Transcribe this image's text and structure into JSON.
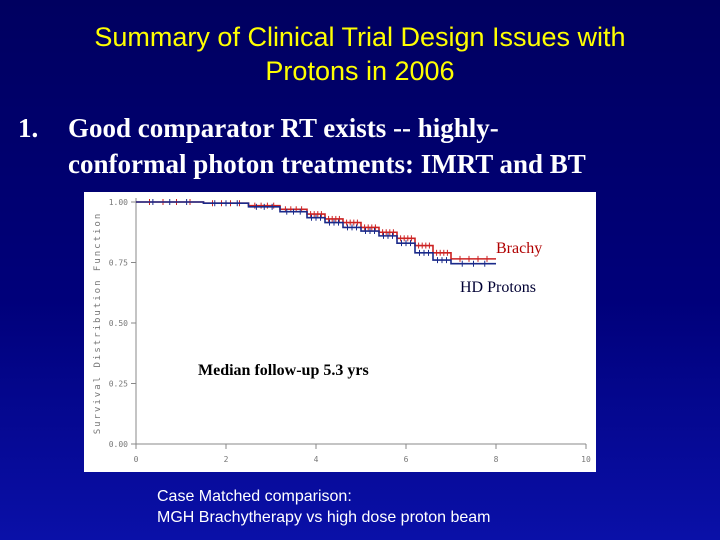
{
  "slide": {
    "title_line1": "Summary of Clinical Trial Design Issues with",
    "title_line2": "Protons in 2006",
    "bullet_number": "1.",
    "bullet_line1": "Good comparator  RT exists -- highly-",
    "bullet_line2": "conformal photon treatments: IMRT and  BT",
    "caption_line1": "Case Matched comparison:",
    "caption_line2": "MGH  Brachytherapy vs high dose proton beam"
  },
  "chart_data": {
    "type": "line",
    "step": true,
    "ylabel": "Survival Distribution Function",
    "xlim": [
      0,
      10
    ],
    "ylim": [
      0,
      1
    ],
    "x_ticks": [
      "0",
      "2",
      "4",
      "6",
      "8",
      "10"
    ],
    "y_ticks": [
      "0.00",
      "0.25",
      "0.50",
      "0.75",
      "1.00"
    ],
    "annotation": "Median follow-up  5.3 yrs",
    "grid": false,
    "series": [
      {
        "name": "Brachy",
        "color": "#cc2222",
        "x": [
          0,
          1.5,
          2.5,
          3.2,
          3.8,
          4.2,
          4.6,
          5.0,
          5.4,
          5.8,
          6.2,
          6.6,
          7.0,
          8.0
        ],
        "y": [
          1.0,
          0.995,
          0.985,
          0.97,
          0.95,
          0.93,
          0.915,
          0.895,
          0.875,
          0.85,
          0.82,
          0.79,
          0.765,
          0.765
        ]
      },
      {
        "name": "HD Protons",
        "color": "#1a2a8a",
        "x": [
          0,
          1.5,
          2.5,
          3.2,
          3.8,
          4.2,
          4.6,
          5.0,
          5.4,
          5.8,
          6.2,
          6.6,
          7.0,
          8.0
        ],
        "y": [
          1.0,
          0.995,
          0.98,
          0.96,
          0.935,
          0.915,
          0.895,
          0.88,
          0.86,
          0.83,
          0.79,
          0.76,
          0.745,
          0.745
        ]
      }
    ]
  }
}
